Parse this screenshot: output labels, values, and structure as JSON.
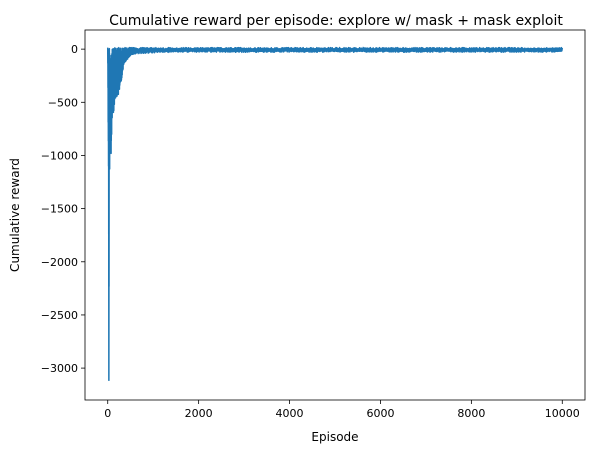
{
  "chart_data": {
    "type": "line",
    "title": "Cumulative reward per episode: explore w/ mask + mask exploit",
    "xlabel": "Episode",
    "ylabel": "Cumulative reward",
    "xlim": [
      -500,
      10500
    ],
    "ylim": [
      -3300,
      180
    ],
    "x_ticks": [
      0,
      2000,
      4000,
      6000,
      8000,
      10000
    ],
    "x_tick_labels": [
      "0",
      "2000",
      "4000",
      "6000",
      "8000",
      "10000"
    ],
    "y_ticks": [
      0,
      -500,
      -1000,
      -1500,
      -2000,
      -2500,
      -3000
    ],
    "y_tick_labels": [
      "0",
      "−500",
      "−1000",
      "−1500",
      "−2000",
      "−2500",
      "−3000"
    ],
    "grid": false,
    "series": [
      {
        "color": "#1f77b4",
        "envelope": {
          "x": [
            0,
            20,
            25,
            30,
            40,
            50,
            70,
            100,
            130,
            150,
            200,
            250,
            300,
            350,
            400,
            500,
            600,
            800,
            1000,
            1500,
            2000,
            3000,
            4000,
            5000,
            6000,
            7000,
            8000,
            9000,
            10000
          ],
          "min": [
            0,
            -1450,
            -3120,
            -200,
            -1250,
            -900,
            -1050,
            -620,
            -600,
            -500,
            -450,
            -420,
            -300,
            -150,
            -120,
            -60,
            -45,
            -40,
            -35,
            -30,
            -28,
            -30,
            -28,
            -30,
            -28,
            -30,
            -28,
            -30,
            -28
          ],
          "max": [
            15,
            0,
            0,
            5,
            10,
            10,
            12,
            15,
            15,
            15,
            15,
            15,
            15,
            15,
            15,
            15,
            15,
            15,
            15,
            15,
            15,
            15,
            15,
            15,
            15,
            15,
            15,
            15,
            15
          ]
        }
      }
    ]
  }
}
